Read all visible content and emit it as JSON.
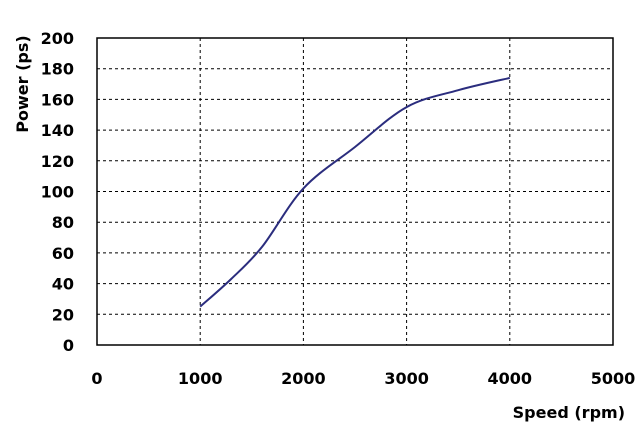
{
  "chart_data": {
    "type": "line",
    "xlabel": "Speed (rpm)",
    "ylabel": "Power (ps)",
    "xlim": [
      0,
      5000
    ],
    "ylim": [
      0,
      200
    ],
    "xticks": [
      0,
      1000,
      2000,
      3000,
      4000,
      5000
    ],
    "yticks": [
      0,
      20,
      40,
      60,
      80,
      100,
      120,
      140,
      160,
      180,
      200
    ],
    "grid": true,
    "series": [
      {
        "color": "#2b2d7e",
        "x": [
          1000,
          1300,
          1600,
          2000,
          2500,
          3000,
          3500,
          4000
        ],
        "y": [
          25,
          43,
          64,
          102,
          129,
          155,
          166,
          174
        ]
      }
    ]
  }
}
